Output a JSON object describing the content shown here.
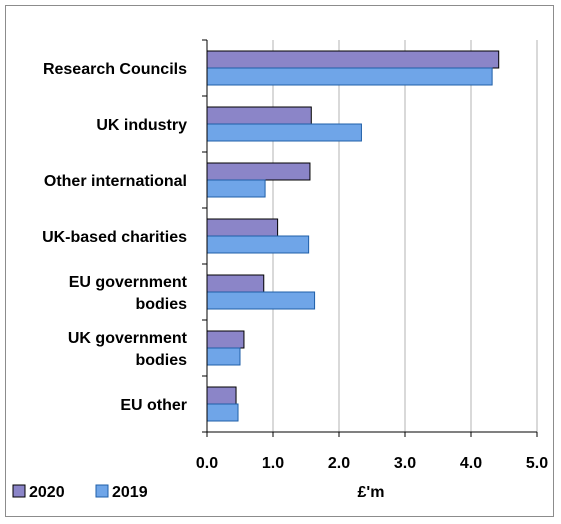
{
  "chart_data": {
    "type": "bar",
    "orientation": "horizontal",
    "categories": [
      [
        "Research Councils"
      ],
      [
        "UK industry"
      ],
      [
        "Other international"
      ],
      [
        "UK-based charities"
      ],
      [
        "EU government",
        "bodies"
      ],
      [
        "UK government",
        "bodies"
      ],
      [
        "EU other"
      ]
    ],
    "series": [
      {
        "name": "2020",
        "color": "#8B85C8",
        "values": [
          4.42,
          1.58,
          1.56,
          1.07,
          0.86,
          0.56,
          0.44
        ]
      },
      {
        "name": "2019",
        "color": "#6FA5E8",
        "values": [
          4.32,
          2.34,
          0.88,
          1.54,
          1.63,
          0.5,
          0.47
        ]
      }
    ],
    "xlabel": "£'m",
    "xlim": [
      0,
      5
    ],
    "xticks": [
      "0.0",
      "1.0",
      "2.0",
      "3.0",
      "4.0",
      "5.0"
    ],
    "grid": "vertical",
    "legend": "bottom-left"
  }
}
